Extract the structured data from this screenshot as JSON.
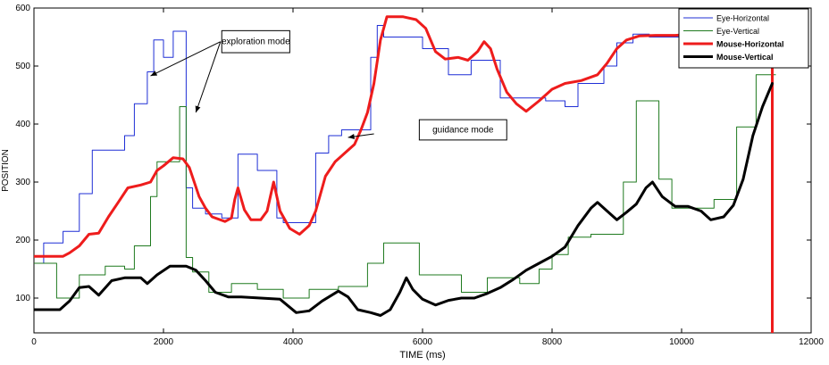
{
  "chart_data": {
    "type": "line",
    "xlabel": "TIME (ms)",
    "ylabel": "POSITION",
    "xlim": [
      0,
      12000
    ],
    "ylim": [
      40,
      600
    ],
    "xticks": [
      0,
      2000,
      4000,
      6000,
      8000,
      10000,
      12000
    ],
    "yticks": [
      100,
      200,
      300,
      400,
      500,
      600
    ],
    "grid": false,
    "legend_position": "top-right",
    "series": [
      {
        "name": "Eye-Horizontal",
        "color": "#1f2fd6",
        "width": 1,
        "step": true,
        "points": [
          [
            0,
            160
          ],
          [
            150,
            160
          ],
          [
            150,
            195
          ],
          [
            450,
            195
          ],
          [
            450,
            215
          ],
          [
            700,
            215
          ],
          [
            700,
            280
          ],
          [
            900,
            280
          ],
          [
            900,
            355
          ],
          [
            1400,
            355
          ],
          [
            1400,
            380
          ],
          [
            1550,
            380
          ],
          [
            1550,
            435
          ],
          [
            1750,
            435
          ],
          [
            1750,
            490
          ],
          [
            1850,
            490
          ],
          [
            1850,
            545
          ],
          [
            2000,
            545
          ],
          [
            2000,
            515
          ],
          [
            2150,
            515
          ],
          [
            2150,
            560
          ],
          [
            2350,
            560
          ],
          [
            2350,
            290
          ],
          [
            2450,
            290
          ],
          [
            2450,
            255
          ],
          [
            2650,
            255
          ],
          [
            2650,
            245
          ],
          [
            2900,
            245
          ],
          [
            2900,
            238
          ],
          [
            3150,
            238
          ],
          [
            3150,
            348
          ],
          [
            3450,
            348
          ],
          [
            3450,
            320
          ],
          [
            3750,
            320
          ],
          [
            3750,
            238
          ],
          [
            3850,
            238
          ],
          [
            3850,
            230
          ],
          [
            4350,
            230
          ],
          [
            4350,
            350
          ],
          [
            4550,
            350
          ],
          [
            4550,
            380
          ],
          [
            4750,
            380
          ],
          [
            4750,
            390
          ],
          [
            5200,
            390
          ],
          [
            5200,
            515
          ],
          [
            5300,
            515
          ],
          [
            5300,
            570
          ],
          [
            5400,
            570
          ],
          [
            5400,
            550
          ],
          [
            6000,
            550
          ],
          [
            6000,
            530
          ],
          [
            6400,
            530
          ],
          [
            6400,
            485
          ],
          [
            6750,
            485
          ],
          [
            6750,
            510
          ],
          [
            7200,
            510
          ],
          [
            7200,
            445
          ],
          [
            7900,
            445
          ],
          [
            7900,
            440
          ],
          [
            8200,
            440
          ],
          [
            8200,
            430
          ],
          [
            8400,
            430
          ],
          [
            8400,
            470
          ],
          [
            8800,
            470
          ],
          [
            8800,
            500
          ],
          [
            9000,
            500
          ],
          [
            9000,
            540
          ],
          [
            9250,
            540
          ],
          [
            9250,
            555
          ],
          [
            9500,
            555
          ],
          [
            9500,
            550
          ],
          [
            10000,
            550
          ],
          [
            10000,
            545
          ],
          [
            11400,
            545
          ]
        ]
      },
      {
        "name": "Eye-Vertical",
        "color": "#1f7a1f",
        "width": 1,
        "step": true,
        "points": [
          [
            0,
            160
          ],
          [
            350,
            160
          ],
          [
            350,
            100
          ],
          [
            700,
            100
          ],
          [
            700,
            140
          ],
          [
            1100,
            140
          ],
          [
            1100,
            155
          ],
          [
            1400,
            155
          ],
          [
            1400,
            150
          ],
          [
            1550,
            150
          ],
          [
            1550,
            190
          ],
          [
            1800,
            190
          ],
          [
            1800,
            275
          ],
          [
            1900,
            275
          ],
          [
            1900,
            335
          ],
          [
            2250,
            335
          ],
          [
            2250,
            430
          ],
          [
            2350,
            430
          ],
          [
            2350,
            170
          ],
          [
            2450,
            170
          ],
          [
            2450,
            145
          ],
          [
            2700,
            145
          ],
          [
            2700,
            110
          ],
          [
            3050,
            110
          ],
          [
            3050,
            125
          ],
          [
            3450,
            125
          ],
          [
            3450,
            115
          ],
          [
            3850,
            115
          ],
          [
            3850,
            100
          ],
          [
            4250,
            100
          ],
          [
            4250,
            115
          ],
          [
            4700,
            115
          ],
          [
            4700,
            120
          ],
          [
            5150,
            120
          ],
          [
            5150,
            160
          ],
          [
            5400,
            160
          ],
          [
            5400,
            195
          ],
          [
            5950,
            195
          ],
          [
            5950,
            140
          ],
          [
            6600,
            140
          ],
          [
            6600,
            110
          ],
          [
            7000,
            110
          ],
          [
            7000,
            135
          ],
          [
            7500,
            135
          ],
          [
            7500,
            125
          ],
          [
            7800,
            125
          ],
          [
            7800,
            150
          ],
          [
            8000,
            150
          ],
          [
            8000,
            175
          ],
          [
            8250,
            175
          ],
          [
            8250,
            205
          ],
          [
            8600,
            205
          ],
          [
            8600,
            210
          ],
          [
            9100,
            210
          ],
          [
            9100,
            300
          ],
          [
            9300,
            300
          ],
          [
            9300,
            440
          ],
          [
            9650,
            440
          ],
          [
            9650,
            305
          ],
          [
            9850,
            305
          ],
          [
            9850,
            255
          ],
          [
            10500,
            255
          ],
          [
            10500,
            270
          ],
          [
            10850,
            270
          ],
          [
            10850,
            395
          ],
          [
            11150,
            395
          ],
          [
            11150,
            485
          ],
          [
            11450,
            485
          ]
        ]
      },
      {
        "name": "Mouse-Horizontal",
        "color": "#ee1c1c",
        "width": 3,
        "step": false,
        "points": [
          [
            0,
            172
          ],
          [
            450,
            172
          ],
          [
            550,
            178
          ],
          [
            700,
            190
          ],
          [
            850,
            210
          ],
          [
            1000,
            212
          ],
          [
            1150,
            240
          ],
          [
            1300,
            265
          ],
          [
            1450,
            290
          ],
          [
            1650,
            295
          ],
          [
            1800,
            300
          ],
          [
            1900,
            320
          ],
          [
            2000,
            328
          ],
          [
            2150,
            342
          ],
          [
            2300,
            340
          ],
          [
            2400,
            325
          ],
          [
            2550,
            275
          ],
          [
            2650,
            255
          ],
          [
            2750,
            240
          ],
          [
            2950,
            232
          ],
          [
            3050,
            238
          ],
          [
            3100,
            270
          ],
          [
            3150,
            290
          ],
          [
            3250,
            252
          ],
          [
            3350,
            235
          ],
          [
            3500,
            235
          ],
          [
            3600,
            250
          ],
          [
            3700,
            300
          ],
          [
            3800,
            250
          ],
          [
            3950,
            220
          ],
          [
            4100,
            210
          ],
          [
            4250,
            225
          ],
          [
            4350,
            250
          ],
          [
            4500,
            310
          ],
          [
            4650,
            335
          ],
          [
            4800,
            350
          ],
          [
            4950,
            365
          ],
          [
            5050,
            390
          ],
          [
            5150,
            420
          ],
          [
            5250,
            470
          ],
          [
            5350,
            545
          ],
          [
            5450,
            585
          ],
          [
            5700,
            585
          ],
          [
            5900,
            580
          ],
          [
            6050,
            565
          ],
          [
            6200,
            525
          ],
          [
            6350,
            512
          ],
          [
            6550,
            515
          ],
          [
            6700,
            510
          ],
          [
            6850,
            525
          ],
          [
            6950,
            542
          ],
          [
            7050,
            530
          ],
          [
            7150,
            495
          ],
          [
            7300,
            455
          ],
          [
            7450,
            435
          ],
          [
            7600,
            422
          ],
          [
            7800,
            440
          ],
          [
            8000,
            460
          ],
          [
            8200,
            470
          ],
          [
            8450,
            475
          ],
          [
            8700,
            485
          ],
          [
            8850,
            505
          ],
          [
            9000,
            530
          ],
          [
            9150,
            545
          ],
          [
            9350,
            552
          ],
          [
            9600,
            553
          ],
          [
            9900,
            553
          ],
          [
            10200,
            555
          ],
          [
            10600,
            553
          ],
          [
            11000,
            555
          ],
          [
            11400,
            555
          ],
          [
            11400,
            40
          ]
        ]
      },
      {
        "name": "Mouse-Vertical",
        "color": "#000000",
        "width": 3,
        "step": false,
        "points": [
          [
            0,
            80
          ],
          [
            400,
            80
          ],
          [
            550,
            95
          ],
          [
            700,
            118
          ],
          [
            850,
            120
          ],
          [
            1000,
            105
          ],
          [
            1200,
            130
          ],
          [
            1400,
            135
          ],
          [
            1650,
            135
          ],
          [
            1750,
            125
          ],
          [
            1900,
            140
          ],
          [
            2100,
            155
          ],
          [
            2350,
            155
          ],
          [
            2500,
            148
          ],
          [
            2650,
            130
          ],
          [
            2800,
            110
          ],
          [
            3000,
            102
          ],
          [
            3200,
            102
          ],
          [
            3500,
            100
          ],
          [
            3800,
            98
          ],
          [
            4050,
            75
          ],
          [
            4250,
            78
          ],
          [
            4450,
            95
          ],
          [
            4700,
            112
          ],
          [
            4850,
            102
          ],
          [
            5000,
            80
          ],
          [
            5200,
            75
          ],
          [
            5350,
            70
          ],
          [
            5500,
            80
          ],
          [
            5650,
            110
          ],
          [
            5750,
            135
          ],
          [
            5850,
            115
          ],
          [
            6000,
            98
          ],
          [
            6200,
            88
          ],
          [
            6400,
            96
          ],
          [
            6600,
            100
          ],
          [
            6800,
            100
          ],
          [
            7000,
            108
          ],
          [
            7200,
            118
          ],
          [
            7400,
            132
          ],
          [
            7600,
            148
          ],
          [
            7800,
            160
          ],
          [
            8000,
            172
          ],
          [
            8200,
            188
          ],
          [
            8400,
            225
          ],
          [
            8600,
            255
          ],
          [
            8700,
            265
          ],
          [
            8850,
            250
          ],
          [
            9000,
            235
          ],
          [
            9150,
            248
          ],
          [
            9300,
            262
          ],
          [
            9450,
            290
          ],
          [
            9550,
            300
          ],
          [
            9700,
            275
          ],
          [
            9900,
            258
          ],
          [
            10100,
            258
          ],
          [
            10300,
            250
          ],
          [
            10450,
            235
          ],
          [
            10650,
            240
          ],
          [
            10800,
            260
          ],
          [
            10950,
            305
          ],
          [
            11100,
            380
          ],
          [
            11250,
            430
          ],
          [
            11400,
            470
          ]
        ]
      }
    ],
    "annotations": [
      {
        "text": "exploration mode",
        "box": [
          2900,
          542
        ],
        "box_size": [
          1050,
          38
        ],
        "arrows": [
          [
            1800,
            483
          ],
          [
            2500,
            420
          ]
        ],
        "arrow_from": [
          2880,
          542
        ]
      },
      {
        "text": "guidance mode",
        "box": [
          5950,
          390
        ],
        "box_size": [
          1350,
          35
        ],
        "arrows": [
          [
            4850,
            377
          ]
        ],
        "arrow_from": [
          5250,
          383
        ]
      }
    ]
  }
}
